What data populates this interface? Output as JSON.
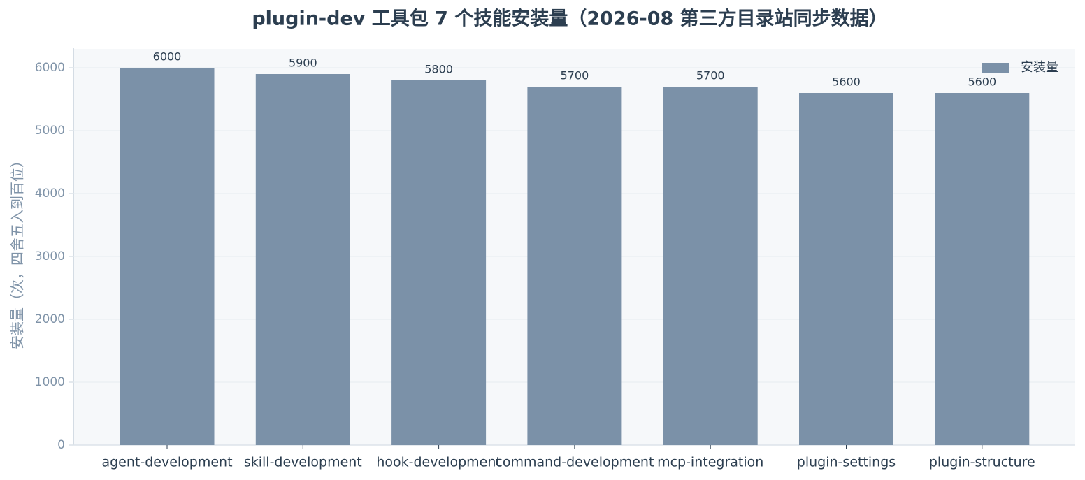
{
  "chart_data": {
    "type": "bar",
    "title": "plugin-dev 工具包 7 个技能安装量（2026-08 第三方目录站同步数据）",
    "y_label": "安装量（次，四舍五入到百位）",
    "categories": [
      "agent-development",
      "skill-development",
      "hook-development",
      "command-development",
      "mcp-integration",
      "plugin-settings",
      "plugin-structure"
    ],
    "series": [
      {
        "name": "安装量",
        "color": "#7b91a8",
        "values": [
          6000,
          5900,
          5800,
          5700,
          5700,
          5600,
          5600
        ]
      }
    ],
    "ylim": [
      0,
      6300
    ],
    "yticks": [
      0,
      1000,
      2000,
      3000,
      4000,
      5000,
      6000
    ],
    "grid": true,
    "legend": "upper-right"
  }
}
